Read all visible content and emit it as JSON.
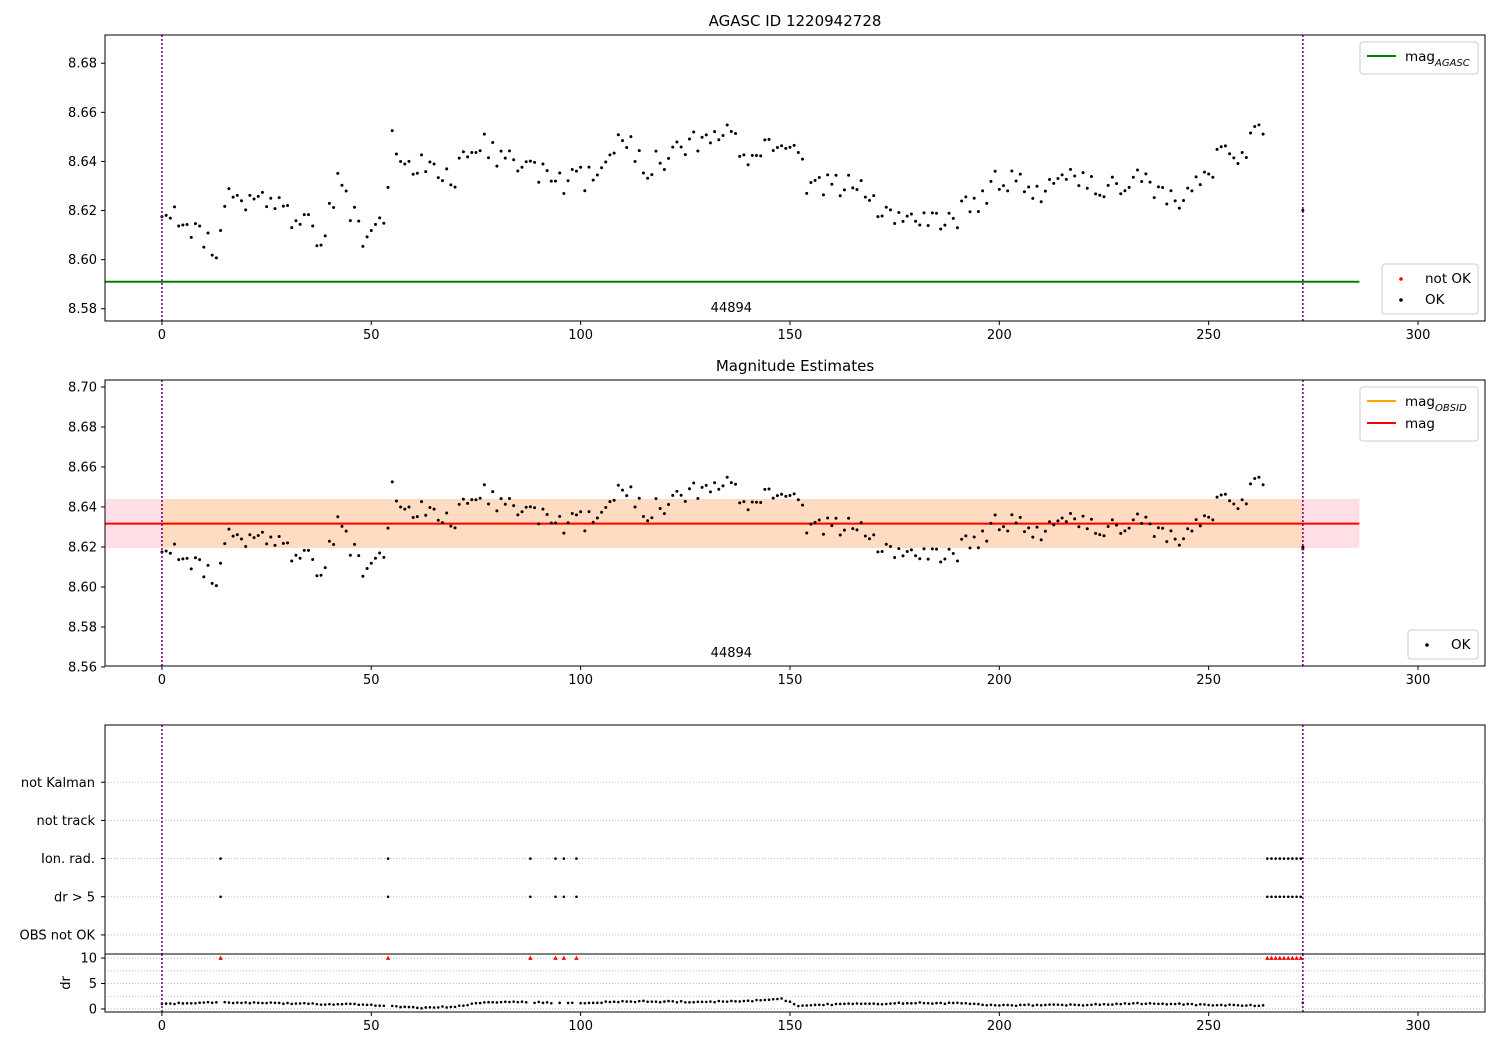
{
  "colors": {
    "ok_points": "#000000",
    "not_ok_points": "#ff0000",
    "mag_agasc_line": "#008000",
    "mag_obsid_line": "#ffa500",
    "mag_line": "#ff0000",
    "band_fill_outer": "#ffc0cb",
    "band_fill_inner": "#ffdab9",
    "obs_boundary_line": "#800080"
  },
  "chart_data": [
    {
      "id": "agasc",
      "type": "scatter",
      "title": "AGASC ID 1220942728",
      "xlim": [
        -13.6,
        316
      ],
      "ylim": [
        8.575,
        8.6915
      ],
      "xticks": [
        0,
        50,
        100,
        150,
        200,
        250,
        300
      ],
      "yticks": [
        8.58,
        8.6,
        8.62,
        8.64,
        8.66,
        8.68
      ],
      "ytick_decimals": 2,
      "obs_boundaries": [
        0,
        272.5
      ],
      "obsid_label": "44894",
      "obsid_label_x": 136,
      "hlines": [
        {
          "y": 8.591,
          "x0": -13.6,
          "x1": 286,
          "color": "#008000"
        }
      ],
      "legend_lines": [
        {
          "label": "mag",
          "sub": "AGASC",
          "color": "#008000"
        }
      ],
      "legend_points": [
        {
          "label": "not OK",
          "color": "#ff0000"
        },
        {
          "label": "OK",
          "color": "#000000"
        }
      ],
      "legend_lines_position": "upper-right",
      "legend_points_position": "lower-right",
      "extra_points": [
        {
          "x": 272.5,
          "y": 8.62
        }
      ]
    },
    {
      "id": "mag-estimates",
      "type": "scatter",
      "title": "Magnitude Estimates",
      "xlim": [
        -13.6,
        316
      ],
      "ylim": [
        8.5605,
        8.7035
      ],
      "xticks": [
        0,
        50,
        100,
        150,
        200,
        250,
        300
      ],
      "yticks": [
        8.56,
        8.58,
        8.6,
        8.62,
        8.64,
        8.66,
        8.68,
        8.7
      ],
      "ytick_decimals": 2,
      "obs_boundaries": [
        0,
        272.5
      ],
      "obsid_label": "44894",
      "obsid_label_x": 136,
      "bands": [
        {
          "y0": 8.6195,
          "y1": 8.644,
          "x0": -13.6,
          "x1": 286,
          "color": "#ffc0cb",
          "opacity": 0.5
        },
        {
          "y0": 8.6195,
          "y1": 8.644,
          "x0": 0,
          "x1": 272.5,
          "color": "#ffdab9",
          "opacity": 0.8
        }
      ],
      "hlines": [
        {
          "y": 8.6317,
          "x0": 0,
          "x1": 272.5,
          "color": "#ffa500"
        },
        {
          "y": 8.6317,
          "x0": -13.6,
          "x1": 286,
          "color": "#ff0000"
        }
      ],
      "legend_lines": [
        {
          "label": "mag",
          "sub": "OBSID",
          "color": "#ffa500"
        },
        {
          "label": "mag",
          "sub": "",
          "color": "#ff0000"
        }
      ],
      "legend_points": [
        {
          "label": "OK",
          "color": "#000000"
        }
      ],
      "legend_lines_position": "upper-right",
      "legend_points_position": "lower-right",
      "extra_points": [
        {
          "x": 272.5,
          "y": 8.62
        },
        {
          "x": 272.5,
          "y": 8.619
        }
      ]
    },
    {
      "id": "flags",
      "type": "scatter",
      "title": "",
      "xlim": [
        -13.6,
        316
      ],
      "ylim": [
        -0.5,
        5.5
      ],
      "xticks": [],
      "categories": [
        "OBS not OK",
        "dr > 5",
        "Ion. rad.",
        "not track",
        "not Kalman"
      ],
      "grid": true,
      "obs_boundaries": [
        0,
        272.5
      ],
      "flag_points": {
        "dr > 5": [
          14,
          54,
          88,
          94,
          96,
          99,
          264,
          265,
          266,
          267,
          268,
          269,
          270,
          271,
          272
        ],
        "Ion. rad.": [
          14,
          54,
          88,
          94,
          96,
          99,
          264,
          265,
          266,
          267,
          268,
          269,
          270,
          271,
          272
        ]
      }
    },
    {
      "id": "dr",
      "type": "scatter",
      "title": "",
      "ylabel": "dr",
      "xlim": [
        -13.6,
        316
      ],
      "ylim": [
        -0.6,
        10.8
      ],
      "xticks": [
        0,
        50,
        100,
        150,
        200,
        250,
        300
      ],
      "yticks": [
        0,
        5,
        10
      ],
      "minor_grid": [
        2.5,
        7.5
      ],
      "obs_boundaries": [
        0,
        272.5
      ],
      "capped_points": [
        14,
        54,
        88,
        94,
        96,
        99,
        264,
        265,
        266,
        267,
        268,
        269,
        270,
        271,
        272
      ],
      "cap_value": 10,
      "dr_baseline": [
        [
          0,
          1.0
        ],
        [
          15,
          1.3
        ],
        [
          25,
          1.2
        ],
        [
          35,
          1.0
        ],
        [
          45,
          0.9
        ],
        [
          55,
          0.6
        ],
        [
          62,
          0.2
        ],
        [
          70,
          0.5
        ],
        [
          78,
          1.4
        ],
        [
          90,
          1.3
        ],
        [
          100,
          1.1
        ],
        [
          110,
          1.5
        ],
        [
          125,
          1.4
        ],
        [
          140,
          1.5
        ],
        [
          148,
          2.0
        ],
        [
          152,
          0.7
        ],
        [
          160,
          0.9
        ],
        [
          170,
          1.0
        ],
        [
          180,
          1.2
        ],
        [
          190,
          1.1
        ],
        [
          200,
          0.7
        ],
        [
          210,
          0.8
        ],
        [
          220,
          0.8
        ],
        [
          235,
          1.1
        ],
        [
          250,
          0.8
        ],
        [
          262,
          0.7
        ]
      ]
    }
  ]
}
